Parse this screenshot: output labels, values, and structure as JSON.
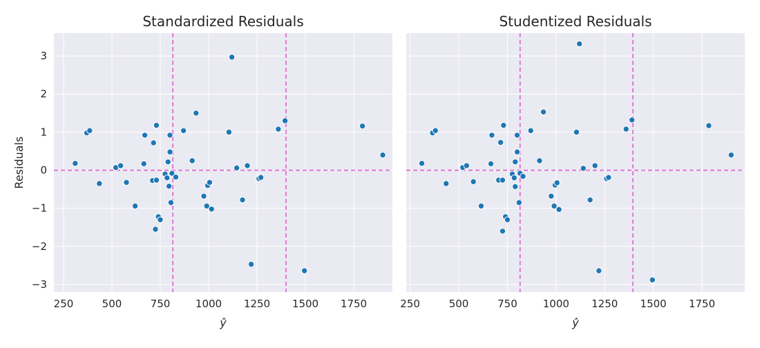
{
  "figure": {
    "ylabel": "Residuals"
  },
  "colors": {
    "background": "#eaeaf2",
    "grid": "#ffffff",
    "points": "#1f77b4",
    "reference_lines": "#de5fd3"
  },
  "chart_data": [
    {
      "type": "scatter",
      "title": "Standardized Residuals",
      "xlabel": "ŷ",
      "ylabel": "Residuals",
      "xlim": [
        200,
        1950
      ],
      "ylim": [
        -3.2,
        3.6
      ],
      "xticks": [
        250,
        500,
        750,
        1000,
        1250,
        1500,
        1750
      ],
      "yticks": [
        -3,
        -2,
        -1,
        0,
        1,
        2,
        3
      ],
      "grid": true,
      "reference_lines": {
        "horizontal": [
          0
        ],
        "vertical": [
          815,
          1400
        ]
      },
      "points": [
        [
          310,
          0.18
        ],
        [
          370,
          0.98
        ],
        [
          385,
          1.04
        ],
        [
          435,
          -0.35
        ],
        [
          520,
          0.07
        ],
        [
          545,
          0.12
        ],
        [
          575,
          -0.32
        ],
        [
          620,
          -0.94
        ],
        [
          665,
          0.17
        ],
        [
          670,
          0.92
        ],
        [
          710,
          -0.27
        ],
        [
          715,
          0.72
        ],
        [
          730,
          -0.26
        ],
        [
          730,
          1.18
        ],
        [
          725,
          -1.55
        ],
        [
          740,
          -1.22
        ],
        [
          750,
          -1.3
        ],
        [
          775,
          -0.1
        ],
        [
          785,
          -0.2
        ],
        [
          790,
          0.22
        ],
        [
          795,
          -0.42
        ],
        [
          800,
          0.48
        ],
        [
          800,
          0.92
        ],
        [
          805,
          -0.85
        ],
        [
          810,
          -0.08
        ],
        [
          830,
          -0.18
        ],
        [
          870,
          1.04
        ],
        [
          915,
          0.25
        ],
        [
          935,
          1.5
        ],
        [
          975,
          -0.68
        ],
        [
          990,
          -0.94
        ],
        [
          995,
          -0.4
        ],
        [
          1005,
          -0.32
        ],
        [
          1015,
          -1.02
        ],
        [
          1105,
          1.0
        ],
        [
          1120,
          2.97
        ],
        [
          1145,
          0.06
        ],
        [
          1175,
          -0.78
        ],
        [
          1200,
          0.12
        ],
        [
          1220,
          -2.47
        ],
        [
          1260,
          -0.22
        ],
        [
          1270,
          -0.19
        ],
        [
          1360,
          1.08
        ],
        [
          1395,
          1.3
        ],
        [
          1495,
          -2.64
        ],
        [
          1795,
          1.16
        ],
        [
          1900,
          0.4
        ]
      ]
    },
    {
      "type": "scatter",
      "title": "Studentized Residuals",
      "xlabel": "ŷ",
      "ylabel": "",
      "xlim": [
        230,
        1970
      ],
      "ylim": [
        -3.2,
        3.6
      ],
      "xticks": [
        250,
        500,
        750,
        1000,
        1250,
        1500,
        1750
      ],
      "yticks": [
        -3,
        -2,
        -1,
        0,
        1,
        2,
        3
      ],
      "grid": true,
      "reference_lines": {
        "horizontal": [
          0
        ],
        "vertical": [
          815,
          1395
        ]
      },
      "points": [
        [
          310,
          0.18
        ],
        [
          365,
          0.98
        ],
        [
          380,
          1.04
        ],
        [
          435,
          -0.35
        ],
        [
          520,
          0.07
        ],
        [
          540,
          0.12
        ],
        [
          575,
          -0.3
        ],
        [
          615,
          -0.94
        ],
        [
          665,
          0.17
        ],
        [
          670,
          0.92
        ],
        [
          705,
          -0.26
        ],
        [
          715,
          0.73
        ],
        [
          725,
          -0.26
        ],
        [
          730,
          1.18
        ],
        [
          725,
          -1.6
        ],
        [
          740,
          -1.22
        ],
        [
          750,
          -1.3
        ],
        [
          775,
          -0.1
        ],
        [
          785,
          -0.2
        ],
        [
          790,
          0.22
        ],
        [
          790,
          -0.43
        ],
        [
          800,
          0.48
        ],
        [
          800,
          0.92
        ],
        [
          810,
          -0.85
        ],
        [
          815,
          -0.08
        ],
        [
          830,
          -0.16
        ],
        [
          870,
          1.04
        ],
        [
          915,
          0.25
        ],
        [
          935,
          1.53
        ],
        [
          975,
          -0.68
        ],
        [
          990,
          -0.94
        ],
        [
          995,
          -0.39
        ],
        [
          1005,
          -0.33
        ],
        [
          1015,
          -1.03
        ],
        [
          1105,
          1.0
        ],
        [
          1120,
          3.32
        ],
        [
          1140,
          0.05
        ],
        [
          1175,
          -0.78
        ],
        [
          1200,
          0.12
        ],
        [
          1220,
          -2.64
        ],
        [
          1260,
          -0.22
        ],
        [
          1270,
          -0.19
        ],
        [
          1360,
          1.08
        ],
        [
          1390,
          1.32
        ],
        [
          1495,
          -2.88
        ],
        [
          1785,
          1.17
        ],
        [
          1900,
          0.4
        ]
      ]
    }
  ]
}
